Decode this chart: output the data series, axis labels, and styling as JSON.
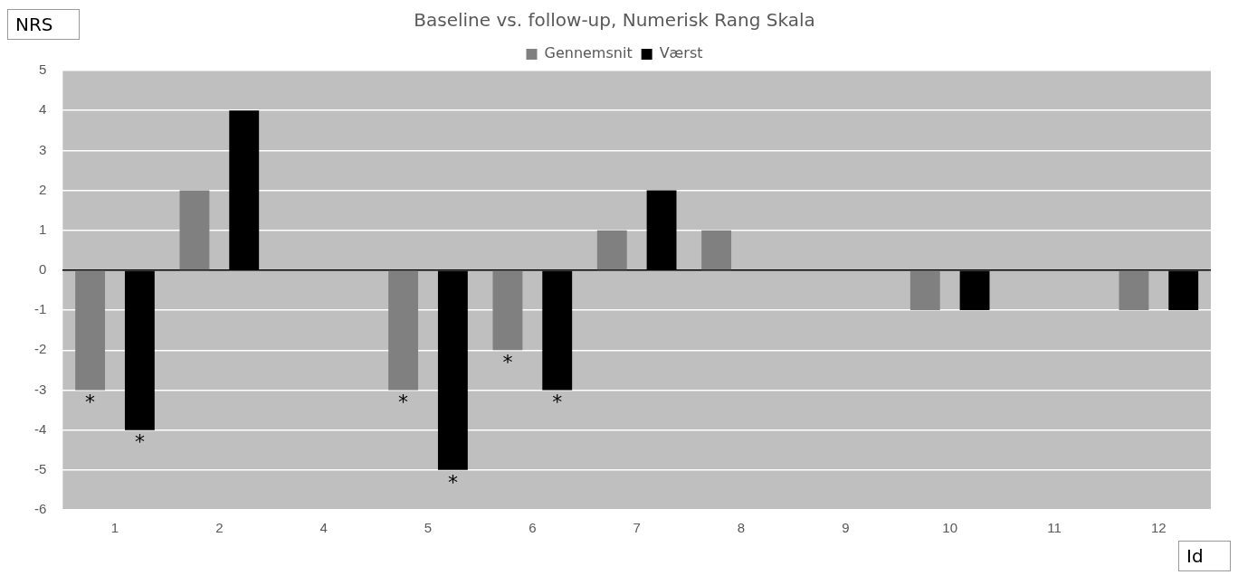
{
  "chart_data": {
    "type": "bar",
    "title": "Baseline vs. follow-up, Numerisk Rang Skala",
    "xlabel": "Id",
    "ylabel": "NRS",
    "categories": [
      "1",
      "2",
      "4",
      "5",
      "6",
      "7",
      "8",
      "9",
      "10",
      "11",
      "12"
    ],
    "series": [
      {
        "name": "Gennemsnit",
        "color": "#808080",
        "values": [
          -3,
          2,
          0,
          -3,
          -2,
          1,
          1,
          0,
          -1,
          0,
          -1
        ],
        "value_labels": [
          "*",
          null,
          null,
          "*",
          "*",
          null,
          null,
          null,
          null,
          null,
          null
        ]
      },
      {
        "name": "Værst",
        "color": "#000000",
        "values": [
          -4,
          4,
          0,
          -5,
          -3,
          2,
          0,
          0,
          -1,
          0,
          -1
        ],
        "value_labels": [
          "*",
          null,
          null,
          "*",
          "*",
          null,
          null,
          null,
          null,
          null,
          null
        ]
      }
    ],
    "ylim": [
      -6,
      5
    ],
    "yticks": [
      -6,
      -5,
      -4,
      -3,
      -2,
      -1,
      0,
      1,
      2,
      3,
      4,
      5
    ],
    "grid": "y",
    "legend": "top"
  }
}
